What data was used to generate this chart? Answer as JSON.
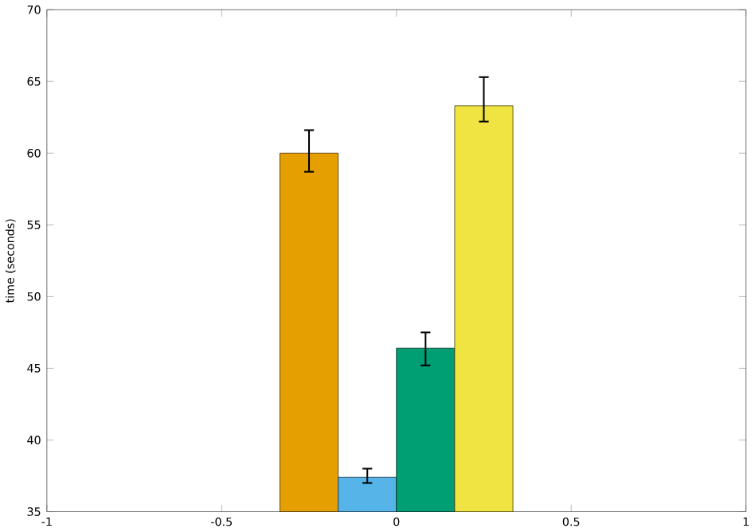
{
  "chart_data": {
    "type": "bar",
    "ylabel": "time (seconds)",
    "x": [
      -0.25,
      -0.0833,
      0.0833,
      0.25
    ],
    "values": [
      60.0,
      37.4,
      46.4,
      63.3
    ],
    "colors": [
      "#e69f00",
      "#56b4e9",
      "#009e73",
      "#f0e442"
    ],
    "errors": [
      [
        58.7,
        61.6
      ],
      [
        37.0,
        38.0
      ],
      [
        45.2,
        47.5
      ],
      [
        62.2,
        65.3
      ]
    ],
    "xlim": [
      -1,
      1
    ],
    "xticks": [
      -1,
      -0.5,
      0,
      0.5,
      1
    ],
    "ylim": [
      35,
      70
    ],
    "yticks": [
      35,
      40,
      45,
      50,
      55,
      60,
      65,
      70
    ]
  }
}
